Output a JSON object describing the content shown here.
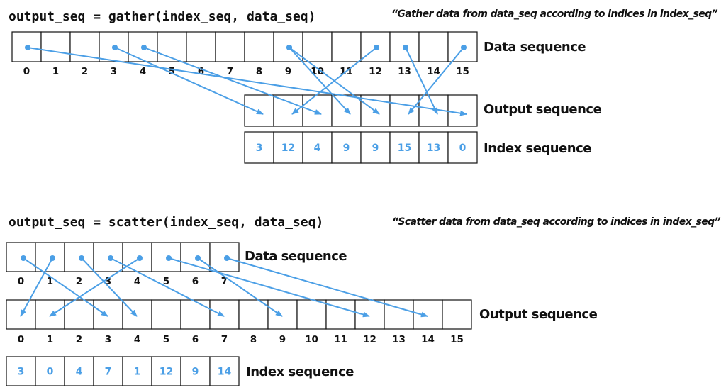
{
  "colors": {
    "accent": "#4b9fe6",
    "ink": "#111111"
  },
  "gather": {
    "code": "output_seq = gather(index_seq, data_seq)",
    "description": "“Gather data from data_seq according to indices in index_seq”",
    "data_label": "Data sequence",
    "output_label": "Output sequence",
    "index_label": "Index sequence",
    "data_indices": [
      "0",
      "1",
      "2",
      "3",
      "4",
      "5",
      "6",
      "7",
      "8",
      "9",
      "10",
      "11",
      "12",
      "13",
      "14",
      "15"
    ],
    "index_values": [
      3,
      12,
      4,
      9,
      9,
      15,
      13,
      0
    ]
  },
  "scatter": {
    "code": "output_seq = scatter(index_seq, data_seq)",
    "description": "“Scatter data from data_seq according to indices in index_seq”",
    "data_label": "Data sequence",
    "output_label": "Output sequence",
    "index_label": "Index sequence",
    "data_indices": [
      "0",
      "1",
      "2",
      "3",
      "4",
      "5",
      "6",
      "7"
    ],
    "output_indices": [
      "0",
      "1",
      "2",
      "3",
      "4",
      "5",
      "6",
      "7",
      "8",
      "9",
      "10",
      "11",
      "12",
      "13",
      "14",
      "15"
    ],
    "index_values": [
      3,
      0,
      4,
      7,
      1,
      12,
      9,
      14
    ]
  }
}
